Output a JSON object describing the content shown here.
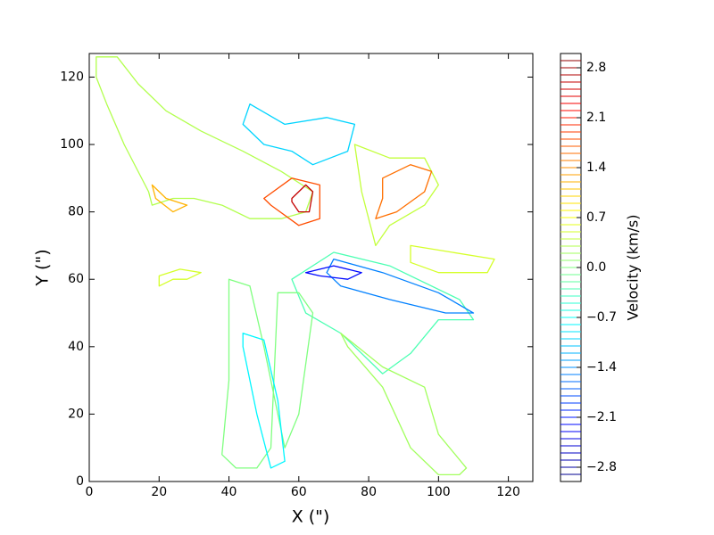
{
  "chart_data": {
    "type": "contour",
    "xlabel": "X (\")",
    "ylabel": "Y (\")",
    "colorbar_label": "Velocity (km/s)",
    "xlim": [
      0,
      127
    ],
    "ylim": [
      0,
      127
    ],
    "xticks": [
      0,
      20,
      40,
      60,
      80,
      100,
      120
    ],
    "yticks": [
      0,
      20,
      40,
      60,
      80,
      100,
      120
    ],
    "colormap": "jet",
    "clim": [
      -3.0,
      3.0
    ],
    "cticks": [
      {
        "value": -2.8,
        "label": "−2.8"
      },
      {
        "value": -2.1,
        "label": "−2.1"
      },
      {
        "value": -1.4,
        "label": "−1.4"
      },
      {
        "value": -0.7,
        "label": "−0.7"
      },
      {
        "value": 0.0,
        "label": "0.0"
      },
      0.7,
      1.4,
      2.1,
      2.8
    ],
    "levels": [
      -2.9,
      -2.8,
      -2.7,
      -2.6,
      -2.5,
      -2.4,
      -2.3,
      -2.2,
      -2.1,
      -2.0,
      -1.9,
      -1.8,
      -1.7,
      -1.6,
      -1.5,
      -1.4,
      -1.3,
      -1.2,
      -1.1,
      -1.0,
      -0.9,
      -0.8,
      -0.7,
      -0.6,
      -0.5,
      -0.4,
      -0.3,
      -0.2,
      -0.1,
      0.0,
      0.1,
      0.2,
      0.3,
      0.4,
      0.5,
      0.6,
      0.7,
      0.8,
      0.9,
      1.0,
      1.1,
      1.2,
      1.3,
      1.4,
      1.5,
      1.6,
      1.7,
      1.8,
      1.9,
      2.0,
      2.1,
      2.2,
      2.3,
      2.4,
      2.5,
      2.6,
      2.7,
      2.8,
      2.9
    ],
    "contours": [
      {
        "level": 0.3,
        "x": [
          2,
          8,
          14,
          22,
          32,
          44,
          55,
          64,
          62,
          55,
          46,
          38,
          30,
          24,
          18,
          17,
          10,
          5,
          2
        ],
        "y": [
          126,
          126,
          118,
          110,
          104,
          98,
          92,
          86,
          80,
          78,
          78,
          82,
          84,
          84,
          82,
          86,
          100,
          112,
          120
        ]
      },
      {
        "level": 1.2,
        "x": [
          18,
          22,
          28,
          24,
          19
        ],
        "y": [
          88,
          84,
          82,
          80,
          84
        ]
      },
      {
        "level": 1.8,
        "x": [
          50,
          58,
          66,
          66,
          60,
          52
        ],
        "y": [
          84,
          90,
          88,
          78,
          76,
          82
        ]
      },
      {
        "level": 2.6,
        "x": [
          58,
          62,
          64,
          63,
          60,
          58
        ],
        "y": [
          84,
          88,
          86,
          80,
          80,
          83
        ]
      },
      {
        "level": 0.4,
        "x": [
          76,
          86,
          96,
          100,
          96,
          86,
          82,
          78
        ],
        "y": [
          100,
          96,
          96,
          88,
          82,
          76,
          70,
          86
        ]
      },
      {
        "level": 1.6,
        "x": [
          84,
          92,
          98,
          96,
          88,
          82,
          84
        ],
        "y": [
          90,
          94,
          92,
          86,
          80,
          78,
          84
        ]
      },
      {
        "level": -1.0,
        "x": [
          46,
          56,
          68,
          76,
          74,
          64,
          58,
          50,
          44
        ],
        "y": [
          112,
          106,
          108,
          106,
          98,
          94,
          98,
          100,
          106
        ]
      },
      {
        "level": -0.3,
        "x": [
          70,
          86,
          106,
          110,
          100,
          92,
          84,
          72,
          62,
          58
        ],
        "y": [
          68,
          64,
          54,
          48,
          48,
          38,
          32,
          44,
          50,
          60
        ]
      },
      {
        "level": -1.5,
        "x": [
          70,
          84,
          100,
          110,
          102,
          86,
          72,
          68
        ],
        "y": [
          66,
          62,
          56,
          50,
          50,
          54,
          58,
          62
        ]
      },
      {
        "level": -2.2,
        "x": [
          62,
          70,
          78,
          74,
          66
        ],
        "y": [
          62,
          64,
          62,
          60,
          61
        ]
      },
      {
        "level": 0.0,
        "x": [
          40,
          46,
          50,
          56,
          60,
          64,
          60,
          54,
          52,
          48,
          42,
          38,
          40
        ],
        "y": [
          60,
          58,
          40,
          10,
          20,
          50,
          56,
          56,
          10,
          4,
          4,
          8,
          30
        ]
      },
      {
        "level": -0.8,
        "x": [
          44,
          50,
          54,
          56,
          52,
          48,
          44
        ],
        "y": [
          44,
          42,
          24,
          6,
          4,
          20,
          40
        ]
      },
      {
        "level": 0.2,
        "x": [
          72,
          84,
          96,
          100,
          108,
          106,
          100,
          92,
          84,
          74
        ],
        "y": [
          44,
          34,
          28,
          14,
          4,
          2,
          2,
          10,
          28,
          40
        ]
      },
      {
        "level": 0.5,
        "x": [
          20,
          24,
          28,
          32,
          26,
          20
        ],
        "y": [
          58,
          60,
          60,
          62,
          63,
          61
        ]
      },
      {
        "level": 0.5,
        "x": [
          92,
          104,
          116,
          114,
          100,
          92
        ],
        "y": [
          70,
          68,
          66,
          62,
          62,
          65
        ]
      }
    ]
  }
}
